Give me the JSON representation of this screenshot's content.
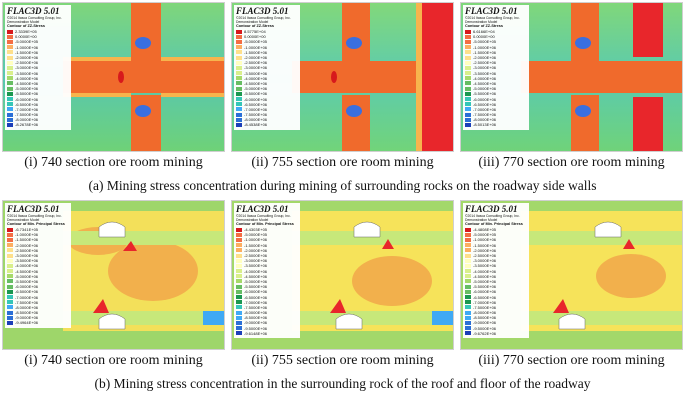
{
  "software_label": "FLAC3D 5.01",
  "credit_line": "©2014 Itasca Consulting Group, Inc.",
  "model_line": "Demonstration Model",
  "row_a": {
    "caption": "(a) Mining stress concentration during mining of surrounding rocks on the roadway side walls",
    "panels": [
      {
        "contour_title": "Contour of ZZ-Stress",
        "caption": "(i) 740 section ore room mining",
        "legend": [
          "2.3339E+05",
          "0.0000E+00",
          "-5.0000E+05",
          "-1.0000E+06",
          "-1.5000E+06",
          "-2.0000E+06",
          "-2.5000E+06",
          "-3.0000E+06",
          "-3.5000E+06",
          "-4.0000E+06",
          "-4.5000E+06",
          "-5.0000E+06",
          "-5.5000E+06",
          "-6.0000E+06",
          "-6.5000E+06",
          "-7.0000E+06",
          "-7.5000E+06",
          "-8.0000E+06",
          "-8.2678E+06"
        ]
      },
      {
        "contour_title": "Contour of ZZ-Stress",
        "caption": "(ii) 755 section ore room mining",
        "legend": [
          "8.5775E+04",
          "0.0000E+00",
          "-5.0000E+05",
          "-1.0000E+06",
          "-1.5000E+06",
          "-2.0000E+06",
          "-2.5000E+06",
          "-3.0000E+06",
          "-3.5000E+06",
          "-4.0000E+06",
          "-4.5000E+06",
          "-5.0000E+06",
          "-5.5000E+06",
          "-6.0000E+06",
          "-6.5000E+06",
          "-7.0000E+06",
          "-7.5000E+06",
          "-8.0000E+06",
          "-8.4538E+06"
        ]
      },
      {
        "contour_title": "Contour of ZZ-Stress",
        "caption": "(iii) 770 section ore room mining",
        "legend": [
          "6.6166E+04",
          "0.0000E+00",
          "-5.0000E+05",
          "-1.0000E+06",
          "-1.5000E+06",
          "-2.0000E+06",
          "-2.5000E+06",
          "-3.0000E+06",
          "-3.5000E+06",
          "-4.0000E+06",
          "-4.5000E+06",
          "-5.0000E+06",
          "-5.5000E+06",
          "-6.0000E+06",
          "-6.5000E+06",
          "-7.0000E+06",
          "-7.5000E+06",
          "-8.0000E+06",
          "-8.5013E+06"
        ]
      }
    ]
  },
  "row_b": {
    "caption": "(b) Mining stress concentration in the surrounding rock of the roof and floor of the roadway",
    "panels": [
      {
        "contour_title": "Contour of Min. Principal Stress",
        "caption": "(i) 740 section ore room mining",
        "legend": [
          "-6.7341E+05",
          "-1.0000E+06",
          "-1.5000E+06",
          "-2.0000E+06",
          "-2.5000E+06",
          "-3.0000E+06",
          "-3.5000E+06",
          "-4.0000E+06",
          "-4.5000E+06",
          "-5.0000E+06",
          "-5.5000E+06",
          "-6.0000E+06",
          "-6.5000E+06",
          "-7.0000E+06",
          "-7.5000E+06",
          "-8.0000E+06",
          "-8.5000E+06",
          "-9.0000E+06",
          "-9.4964E+06"
        ]
      },
      {
        "contour_title": "Contour of Min. Principal Stress",
        "caption": "(ii) 755 section ore room mining",
        "legend": [
          "-4.4303E+05",
          "-5.0000E+05",
          "-1.0000E+06",
          "-1.5000E+06",
          "-2.0000E+06",
          "-2.5000E+06",
          "-3.0000E+06",
          "-3.5000E+06",
          "-4.0000E+06",
          "-4.5000E+06",
          "-5.0000E+06",
          "-5.5000E+06",
          "-6.0000E+06",
          "-6.5000E+06",
          "-7.0000E+06",
          "-7.5000E+06",
          "-8.0000E+06",
          "-8.5000E+06",
          "-9.0000E+06",
          "-9.5000E+06",
          "-9.6148E+06"
        ]
      },
      {
        "contour_title": "Contour of Min. Principal Stress",
        "caption": "(iii) 770 section ore room mining",
        "legend": [
          "-4.4808E+05",
          "-5.0000E+05",
          "-1.0000E+06",
          "-1.5000E+06",
          "-2.0000E+06",
          "-2.5000E+06",
          "-3.0000E+06",
          "-3.5000E+06",
          "-4.0000E+06",
          "-4.5000E+06",
          "-5.0000E+06",
          "-5.5000E+06",
          "-6.0000E+06",
          "-6.5000E+06",
          "-7.0000E+06",
          "-7.5000E+06",
          "-8.0000E+06",
          "-8.5000E+06",
          "-9.0000E+06",
          "-9.5000E+06",
          "-9.6762E+06"
        ]
      }
    ]
  },
  "colors": {
    "stress_ramp": [
      "#d7191c",
      "#f46d43",
      "#fdae61",
      "#fee08b",
      "#ffffbf",
      "#d9ef8b",
      "#a6d96a",
      "#66bd63",
      "#1a9850",
      "#35c6b7",
      "#3fa9f5",
      "#2b6fd6",
      "#1c3fb8"
    ],
    "rock_green": "#6ccf6a",
    "rock_teal": "#4fc9a5",
    "pillar_orange": "#f06a2c",
    "mined_red": "#e8262b",
    "roof_yellow": "#f6e35a",
    "roof_orange": "#f2b04c"
  }
}
